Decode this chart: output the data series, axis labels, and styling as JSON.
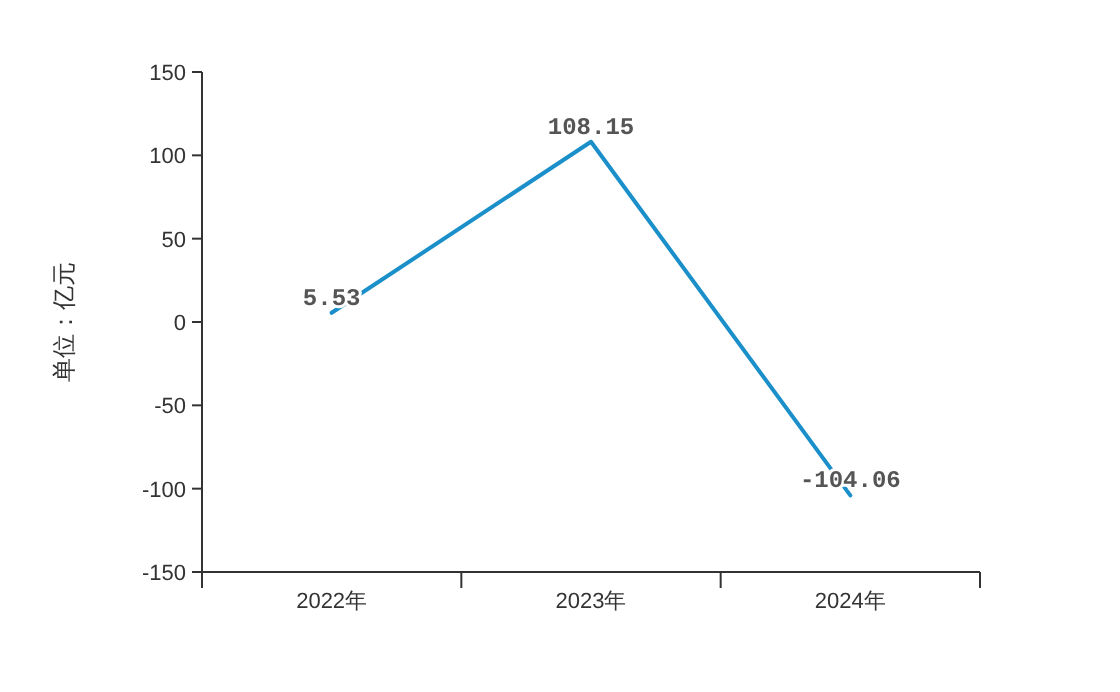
{
  "chart_data": {
    "type": "line",
    "ylabel": "单位：亿元",
    "categories": [
      "2022年",
      "2023年",
      "2024年"
    ],
    "series": [
      {
        "color": "#1a8fc9",
        "values": [
          5.53,
          108.15,
          -104.06
        ]
      }
    ],
    "ylim": [
      -150,
      150
    ],
    "yticks": [
      -150,
      -100,
      -50,
      0,
      50,
      100,
      150
    ],
    "grid": false,
    "marker": "none",
    "line_style": "solid",
    "data_labels": true
  }
}
